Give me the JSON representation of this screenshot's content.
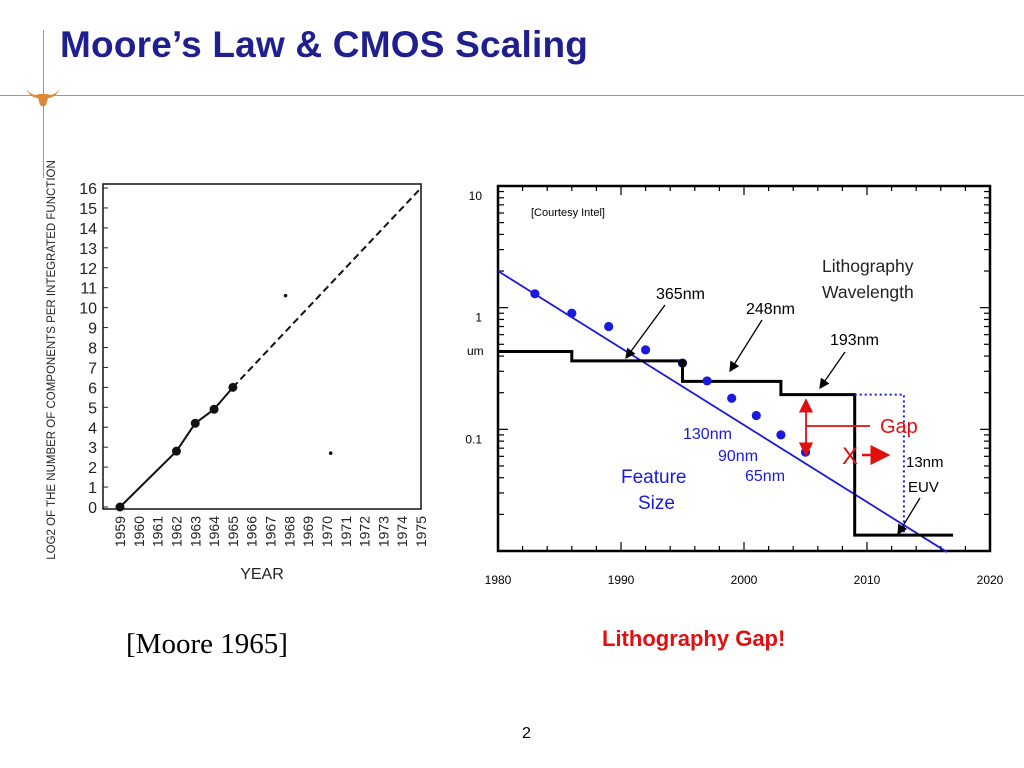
{
  "slide": {
    "title": "Moore’s Law & CMOS Scaling",
    "moore_caption": "[Moore 1965]",
    "gap_caption": "Lithography Gap!",
    "page_number": "2",
    "accent_color": "#d98a3a",
    "title_color": "#1f1f8f",
    "logo_icon": "longhorn-icon"
  },
  "chart_data": [
    {
      "type": "line",
      "title": "",
      "xlabel": "YEAR",
      "ylabel": "LOG2 OF THE NUMBER OF COMPONENTS PER INTEGRATED FUNCTION",
      "x_ticks": [
        "1959",
        "1960",
        "1961",
        "1962",
        "1963",
        "1964",
        "1965",
        "1966",
        "1967",
        "1968",
        "1969",
        "1970",
        "1971",
        "1972",
        "1973",
        "1974",
        "1975"
      ],
      "y_ticks": [
        "0",
        "1",
        "2",
        "3",
        "4",
        "5",
        "6",
        "7",
        "8",
        "9",
        "10",
        "11",
        "12",
        "13",
        "14",
        "15",
        "16"
      ],
      "xlim": [
        1959,
        1975
      ],
      "ylim": [
        0,
        16
      ],
      "series": [
        {
          "style": "solid",
          "x": [
            1959,
            1962,
            1963,
            1964,
            1965
          ],
          "y": [
            0,
            2.8,
            4.2,
            4.9,
            6.0
          ]
        },
        {
          "style": "dashed",
          "x": [
            1965,
            1975
          ],
          "y": [
            6.0,
            16.0
          ]
        }
      ],
      "stray_points": [
        {
          "x": 1967.8,
          "y": 10.6
        },
        {
          "x": 1970.2,
          "y": 2.7
        }
      ]
    },
    {
      "type": "line",
      "title": "",
      "source_note": "[Courtesy Intel]",
      "xlabel": "",
      "ylabel": "um",
      "y_scale": "log",
      "xlim": [
        1980,
        2020
      ],
      "ylim": [
        0.01,
        10
      ],
      "x_ticks": [
        "1980",
        "1990",
        "2000",
        "2010",
        "2020"
      ],
      "y_ticks": [
        "10",
        "1",
        "0.1"
      ],
      "y_unit_label": "um",
      "series": [
        {
          "name": "Feature Size",
          "color": "#1a1adb",
          "trend_x": [
            1980,
            2016.5
          ],
          "trend_y": [
            2.0,
            0.0098
          ],
          "points_x": [
            1983,
            1986,
            1989,
            1992,
            1995,
            1997,
            1999,
            2001,
            2003,
            2005
          ],
          "points_y": [
            1.3,
            0.9,
            0.7,
            0.45,
            0.35,
            0.25,
            0.18,
            0.13,
            0.09,
            0.065
          ]
        },
        {
          "name": "Lithography Wavelength",
          "color": "#000000",
          "step_x": [
            1980,
            1986,
            1986,
            1995,
            1995,
            2003,
            2003,
            2009,
            2009,
            2017
          ],
          "step_y": [
            0.436,
            0.436,
            0.365,
            0.365,
            0.248,
            0.248,
            0.193,
            0.193,
            0.0135,
            0.0135
          ]
        },
        {
          "name": "EUV (planned)",
          "color": "#1a1adb",
          "style": "dotted",
          "step_x": [
            2009,
            2013,
            2013
          ],
          "step_y": [
            0.193,
            0.193,
            0.0135
          ]
        }
      ],
      "annotations": {
        "litho_label_1": "Lithography",
        "litho_label_2": "Wavelength",
        "feature_label_1": "Feature",
        "feature_label_2": "Size",
        "nm365": "365nm",
        "nm248": "248nm",
        "nm193": "193nm",
        "nm130": "130nm",
        "nm90": "90nm",
        "nm65": "65nm",
        "nm13": "13nm",
        "euv": "EUV",
        "gap": "Gap",
        "x_mark": "X"
      },
      "colors": {
        "blue": "#1a1adb",
        "red": "#e01010",
        "black": "#000000"
      }
    }
  ]
}
